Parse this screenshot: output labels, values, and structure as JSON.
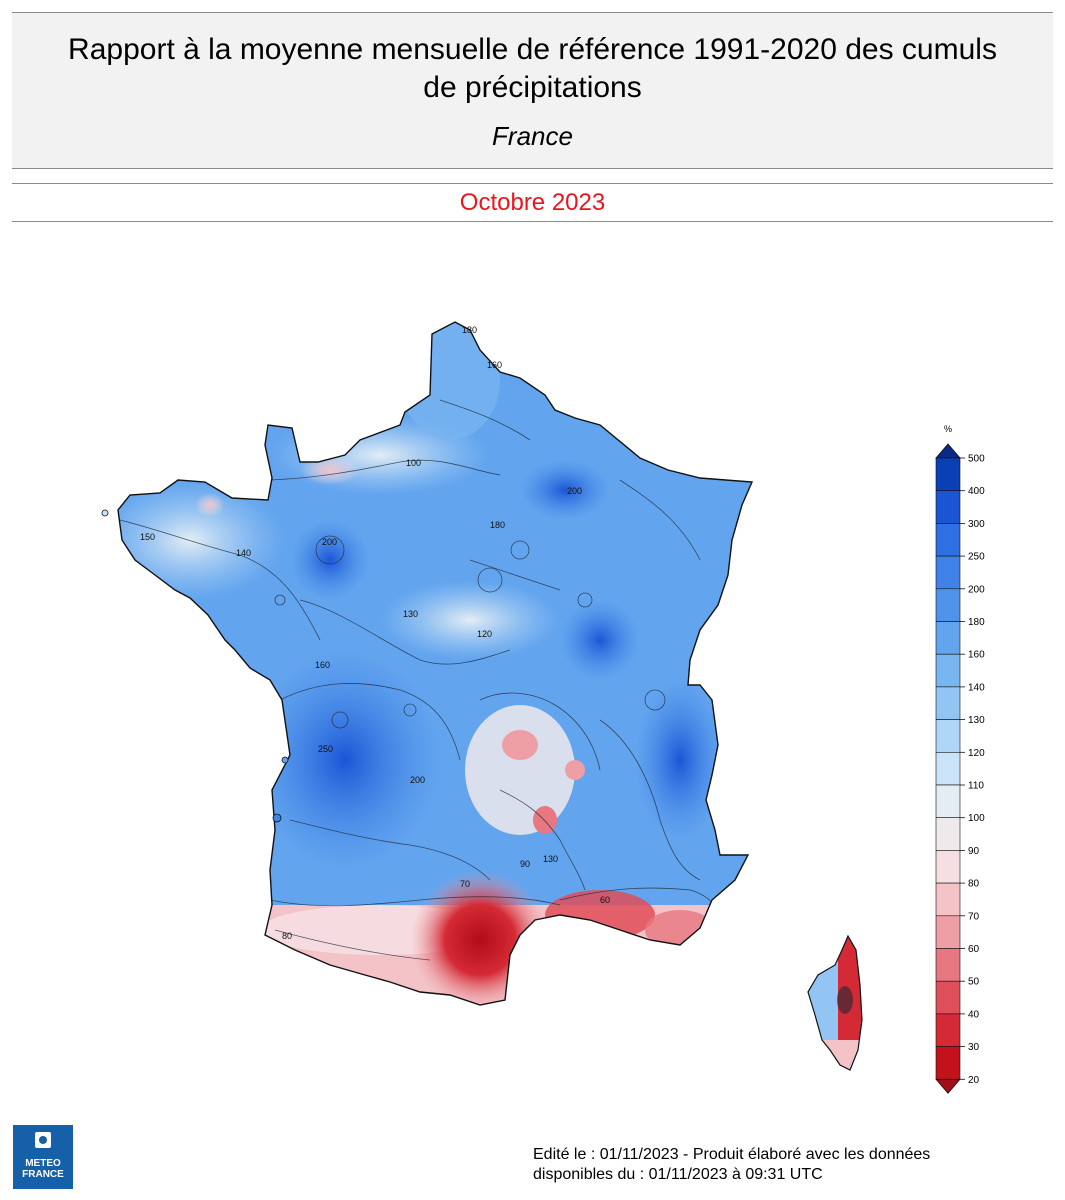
{
  "header": {
    "title_line1": "Rapport à la moyenne mensuelle de référence 1991-2020 des cumuls",
    "title_line2": "de précipitations",
    "subtitle": "France"
  },
  "period": "Octobre 2023",
  "map": {
    "region": "France",
    "variable": "Rapport à la moyenne mensuelle de référence 1991-2020 des cumuls de précipitations",
    "contour_labels": [
      "180",
      "160",
      "100",
      "140",
      "200",
      "130",
      "120",
      "150",
      "160",
      "180",
      "200",
      "250",
      "70",
      "80",
      "90",
      "60",
      "130"
    ]
  },
  "legend": {
    "unit": "%",
    "levels": [
      "500",
      "400",
      "300",
      "250",
      "200",
      "180",
      "160",
      "140",
      "130",
      "120",
      "110",
      "100",
      "90",
      "80",
      "70",
      "60",
      "50",
      "40",
      "30",
      "20"
    ],
    "colors": [
      "#0a3fb5",
      "#1b55d6",
      "#2e6fe3",
      "#3f83e8",
      "#4f94ea",
      "#62a4ee",
      "#79b5f1",
      "#93c5f4",
      "#afd5f7",
      "#cbe3f8",
      "#e4edf4",
      "#eeeaec",
      "#f6dfe2",
      "#f3c3c8",
      "#ee9fa6",
      "#e77780",
      "#df4f5a",
      "#d42a35",
      "#c3121c",
      "#a30d15"
    ]
  },
  "footer": {
    "logo_line1": "METEO",
    "logo_line2": "FRANCE",
    "line1": "Edité le : 01/11/2023 - Produit élaboré avec les données",
    "line2": "disponibles du : 01/11/2023 à 09:31 UTC"
  }
}
